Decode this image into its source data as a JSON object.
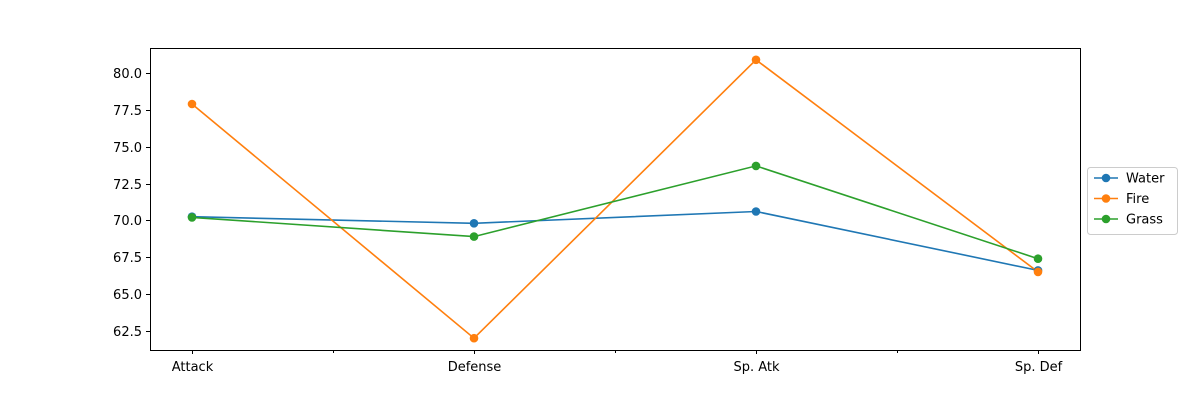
{
  "chart_data": {
    "type": "line",
    "categories": [
      "Attack",
      "Defense",
      "Sp. Atk",
      "Sp. Def"
    ],
    "series": [
      {
        "name": "Water",
        "color": "#1f77b4",
        "values": [
          70.25,
          69.8,
          70.6,
          66.6
        ]
      },
      {
        "name": "Fire",
        "color": "#ff7f0e",
        "values": [
          77.9,
          62.0,
          80.9,
          66.5
        ]
      },
      {
        "name": "Grass",
        "color": "#2ca02c",
        "values": [
          70.2,
          68.9,
          73.7,
          67.4
        ]
      }
    ],
    "ylim": [
      61.2,
      81.7
    ],
    "yticks": [
      "62.5",
      "65.0",
      "67.5",
      "70.0",
      "72.5",
      "75.0",
      "77.5",
      "80.0"
    ],
    "grid": false,
    "legend_position": "right",
    "markers": "circle"
  }
}
